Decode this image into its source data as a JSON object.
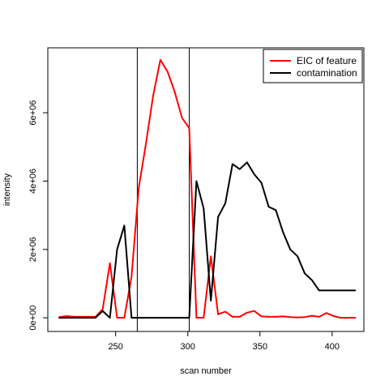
{
  "chart_data": {
    "type": "line",
    "xlabel": "scan number",
    "ylabel": "intensity",
    "xlim": [
      203,
      422
    ],
    "ylim": [
      -400000,
      7900000
    ],
    "x_ticks": [
      250,
      300,
      350,
      400
    ],
    "x_tick_labels": [
      "250",
      "300",
      "350",
      "400"
    ],
    "y_ticks": [
      0,
      2000000,
      4000000,
      6000000
    ],
    "y_tick_labels": [
      "0e+00",
      "2e+06",
      "4e+06",
      "6e+06"
    ],
    "vertical_lines": [
      265,
      301
    ],
    "legend": {
      "position": "top-right",
      "entries": [
        "EIC of feature",
        "contamination"
      ]
    },
    "series": [
      {
        "name": "EIC of feature",
        "color": "#ff0000",
        "x": [
          211,
          216,
          221,
          226,
          231,
          236,
          241,
          246,
          251,
          256,
          261,
          266,
          271,
          276,
          281,
          286,
          291,
          296,
          301,
          306,
          311,
          316,
          321,
          326,
          331,
          336,
          341,
          346,
          351,
          356,
          361,
          366,
          371,
          376,
          381,
          386,
          391,
          396,
          401,
          406,
          411,
          416
        ],
        "y": [
          20000,
          50000,
          30000,
          30000,
          30000,
          30000,
          250000,
          1600000,
          0,
          0,
          1200000,
          3800000,
          5100000,
          6500000,
          7550000,
          7200000,
          6600000,
          5850000,
          5550000,
          0,
          0,
          1800000,
          100000,
          180000,
          30000,
          30000,
          150000,
          200000,
          40000,
          30000,
          30000,
          40000,
          20000,
          10000,
          20000,
          60000,
          30000,
          140000,
          50000,
          0,
          0,
          0
        ]
      },
      {
        "name": "contamination",
        "color": "#000000",
        "x": [
          211,
          216,
          221,
          226,
          231,
          236,
          241,
          246,
          251,
          256,
          261,
          266,
          271,
          276,
          281,
          286,
          291,
          296,
          301,
          306,
          311,
          316,
          321,
          326,
          331,
          336,
          341,
          346,
          351,
          356,
          361,
          366,
          371,
          376,
          381,
          386,
          391,
          396,
          401,
          406,
          411,
          416
        ],
        "y": [
          0,
          0,
          0,
          0,
          0,
          0,
          200000,
          0,
          2000000,
          2700000,
          0,
          0,
          0,
          0,
          0,
          0,
          0,
          0,
          0,
          4000000,
          3200000,
          500000,
          2950000,
          3350000,
          4500000,
          4350000,
          4550000,
          4200000,
          3950000,
          3250000,
          3150000,
          2500000,
          2000000,
          1800000,
          1300000,
          1100000,
          800000,
          800000,
          800000,
          800000,
          800000,
          800000
        ]
      }
    ]
  }
}
